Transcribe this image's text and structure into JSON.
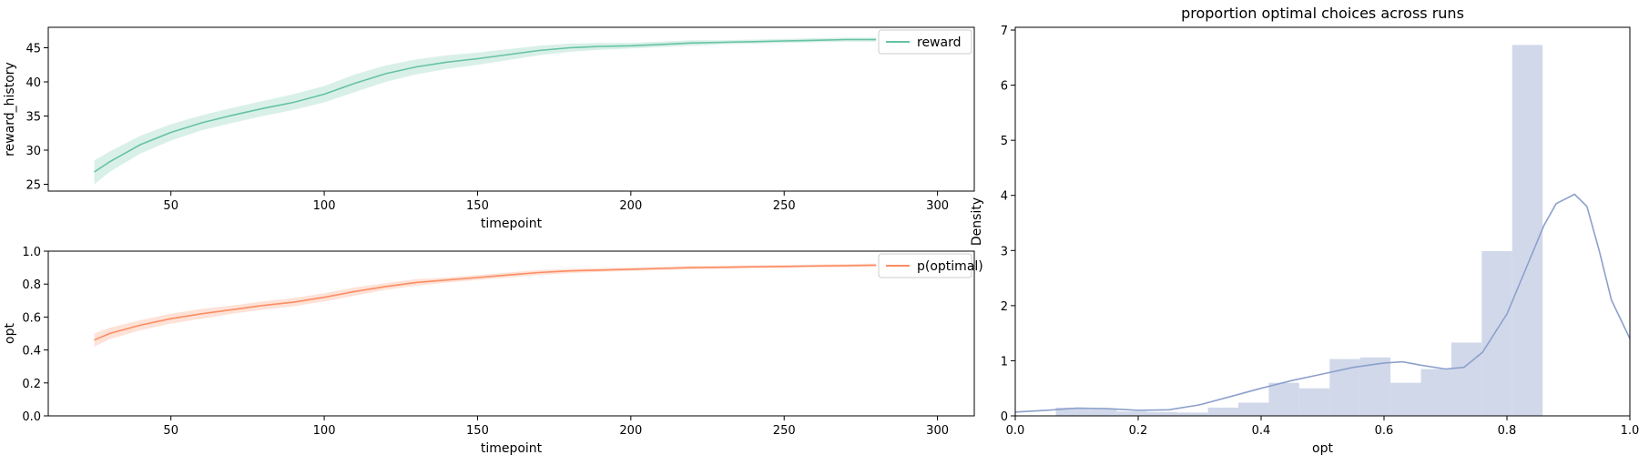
{
  "chart_data": [
    {
      "type": "line",
      "title": "",
      "xlabel": "timepoint",
      "ylabel": "reward_history",
      "xlim": [
        10,
        312
      ],
      "ylim": [
        24,
        48
      ],
      "xticks": [
        50,
        100,
        150,
        200,
        250,
        300
      ],
      "yticks": [
        25,
        30,
        35,
        40,
        45
      ],
      "legend": "top-right",
      "series": [
        {
          "name": "reward",
          "color": "#66c2a5",
          "x": [
            25,
            30,
            40,
            50,
            60,
            70,
            80,
            90,
            100,
            110,
            120,
            130,
            140,
            150,
            160,
            170,
            180,
            190,
            200,
            210,
            220,
            230,
            240,
            250,
            260,
            270,
            280
          ],
          "y": [
            26.8,
            28.3,
            30.8,
            32.6,
            34.0,
            35.1,
            36.1,
            37.0,
            38.2,
            39.8,
            41.2,
            42.2,
            42.9,
            43.4,
            44.0,
            44.6,
            45.0,
            45.2,
            45.3,
            45.5,
            45.7,
            45.8,
            45.9,
            46.0,
            46.1,
            46.2,
            46.2
          ],
          "band_lower": [
            25.0,
            26.8,
            29.5,
            31.4,
            32.9,
            34.0,
            35.0,
            35.9,
            37.0,
            38.5,
            40.0,
            41.1,
            41.9,
            42.5,
            43.2,
            43.9,
            44.4,
            44.7,
            44.9,
            45.1,
            45.3,
            45.5,
            45.6,
            45.7,
            45.8,
            45.9,
            45.9
          ],
          "band_upper": [
            28.5,
            29.8,
            32.1,
            33.8,
            35.1,
            36.2,
            37.2,
            38.2,
            39.4,
            41.1,
            42.4,
            43.3,
            43.9,
            44.3,
            44.8,
            45.3,
            45.6,
            45.7,
            45.7,
            45.9,
            46.1,
            46.1,
            46.2,
            46.3,
            46.4,
            46.5,
            46.5
          ]
        }
      ]
    },
    {
      "type": "line",
      "title": "",
      "xlabel": "timepoint",
      "ylabel": "opt",
      "xlim": [
        10,
        312
      ],
      "ylim": [
        0.0,
        1.0
      ],
      "xticks": [
        50,
        100,
        150,
        200,
        250,
        300
      ],
      "yticks": [
        0.0,
        0.2,
        0.4,
        0.6,
        0.8,
        1.0
      ],
      "legend": "top-right",
      "series": [
        {
          "name": "p(optimal)",
          "color": "#fc8d62",
          "x": [
            25,
            30,
            40,
            50,
            60,
            70,
            80,
            90,
            100,
            110,
            120,
            130,
            140,
            150,
            160,
            170,
            180,
            190,
            200,
            210,
            220,
            230,
            240,
            250,
            260,
            270,
            280
          ],
          "y": [
            0.46,
            0.5,
            0.55,
            0.59,
            0.62,
            0.645,
            0.67,
            0.69,
            0.72,
            0.755,
            0.785,
            0.81,
            0.825,
            0.84,
            0.855,
            0.87,
            0.88,
            0.885,
            0.89,
            0.895,
            0.9,
            0.902,
            0.905,
            0.907,
            0.91,
            0.912,
            0.915
          ],
          "band_lower": [
            0.42,
            0.465,
            0.52,
            0.56,
            0.59,
            0.62,
            0.645,
            0.665,
            0.695,
            0.73,
            0.765,
            0.79,
            0.81,
            0.825,
            0.84,
            0.855,
            0.867,
            0.874,
            0.88,
            0.885,
            0.89,
            0.893,
            0.896,
            0.898,
            0.901,
            0.903,
            0.905
          ],
          "band_upper": [
            0.5,
            0.535,
            0.58,
            0.62,
            0.65,
            0.67,
            0.695,
            0.715,
            0.745,
            0.78,
            0.805,
            0.83,
            0.84,
            0.855,
            0.87,
            0.885,
            0.893,
            0.896,
            0.9,
            0.905,
            0.91,
            0.911,
            0.914,
            0.916,
            0.919,
            0.921,
            0.925
          ]
        }
      ]
    },
    {
      "type": "bar",
      "title": "proportion optimal choices across runs",
      "xlabel": "opt",
      "ylabel": "Density",
      "xlim": [
        0.0,
        1.0
      ],
      "ylim": [
        0,
        7.05
      ],
      "xticks": [
        0.0,
        0.2,
        0.4,
        0.6,
        0.8,
        1.0
      ],
      "yticks": [
        0,
        1,
        2,
        3,
        4,
        5,
        6,
        7
      ],
      "grid": false,
      "histogram": {
        "color": "#d0d8ea",
        "bin_edges": [
          0.066,
          0.1155,
          0.165,
          0.2145,
          0.264,
          0.3135,
          0.363,
          0.4125,
          0.462,
          0.5115,
          0.561,
          0.6105,
          0.66,
          0.7095,
          0.759,
          0.8085,
          0.858,
          0.9075,
          0.957
        ],
        "values": [
          0.15,
          0.12,
          0.08,
          0.07,
          0.06,
          0.15,
          0.24,
          0.6,
          0.5,
          1.03,
          1.06,
          0.6,
          0.85,
          1.33,
          2.99,
          6.73,
          0,
          0
        ]
      },
      "kde": {
        "color": "#8da0cb",
        "x": [
          0.0,
          0.05,
          0.1,
          0.15,
          0.2,
          0.25,
          0.3,
          0.35,
          0.4,
          0.45,
          0.5,
          0.55,
          0.6,
          0.63,
          0.66,
          0.7,
          0.73,
          0.76,
          0.8,
          0.83,
          0.86,
          0.88,
          0.91,
          0.93,
          0.95,
          0.97,
          1.0
        ],
        "y": [
          0.07,
          0.1,
          0.14,
          0.13,
          0.1,
          0.11,
          0.2,
          0.35,
          0.5,
          0.64,
          0.76,
          0.88,
          0.96,
          0.98,
          0.92,
          0.85,
          0.88,
          1.15,
          1.85,
          2.65,
          3.45,
          3.85,
          4.02,
          3.8,
          3.0,
          2.1,
          1.4
        ]
      }
    }
  ]
}
